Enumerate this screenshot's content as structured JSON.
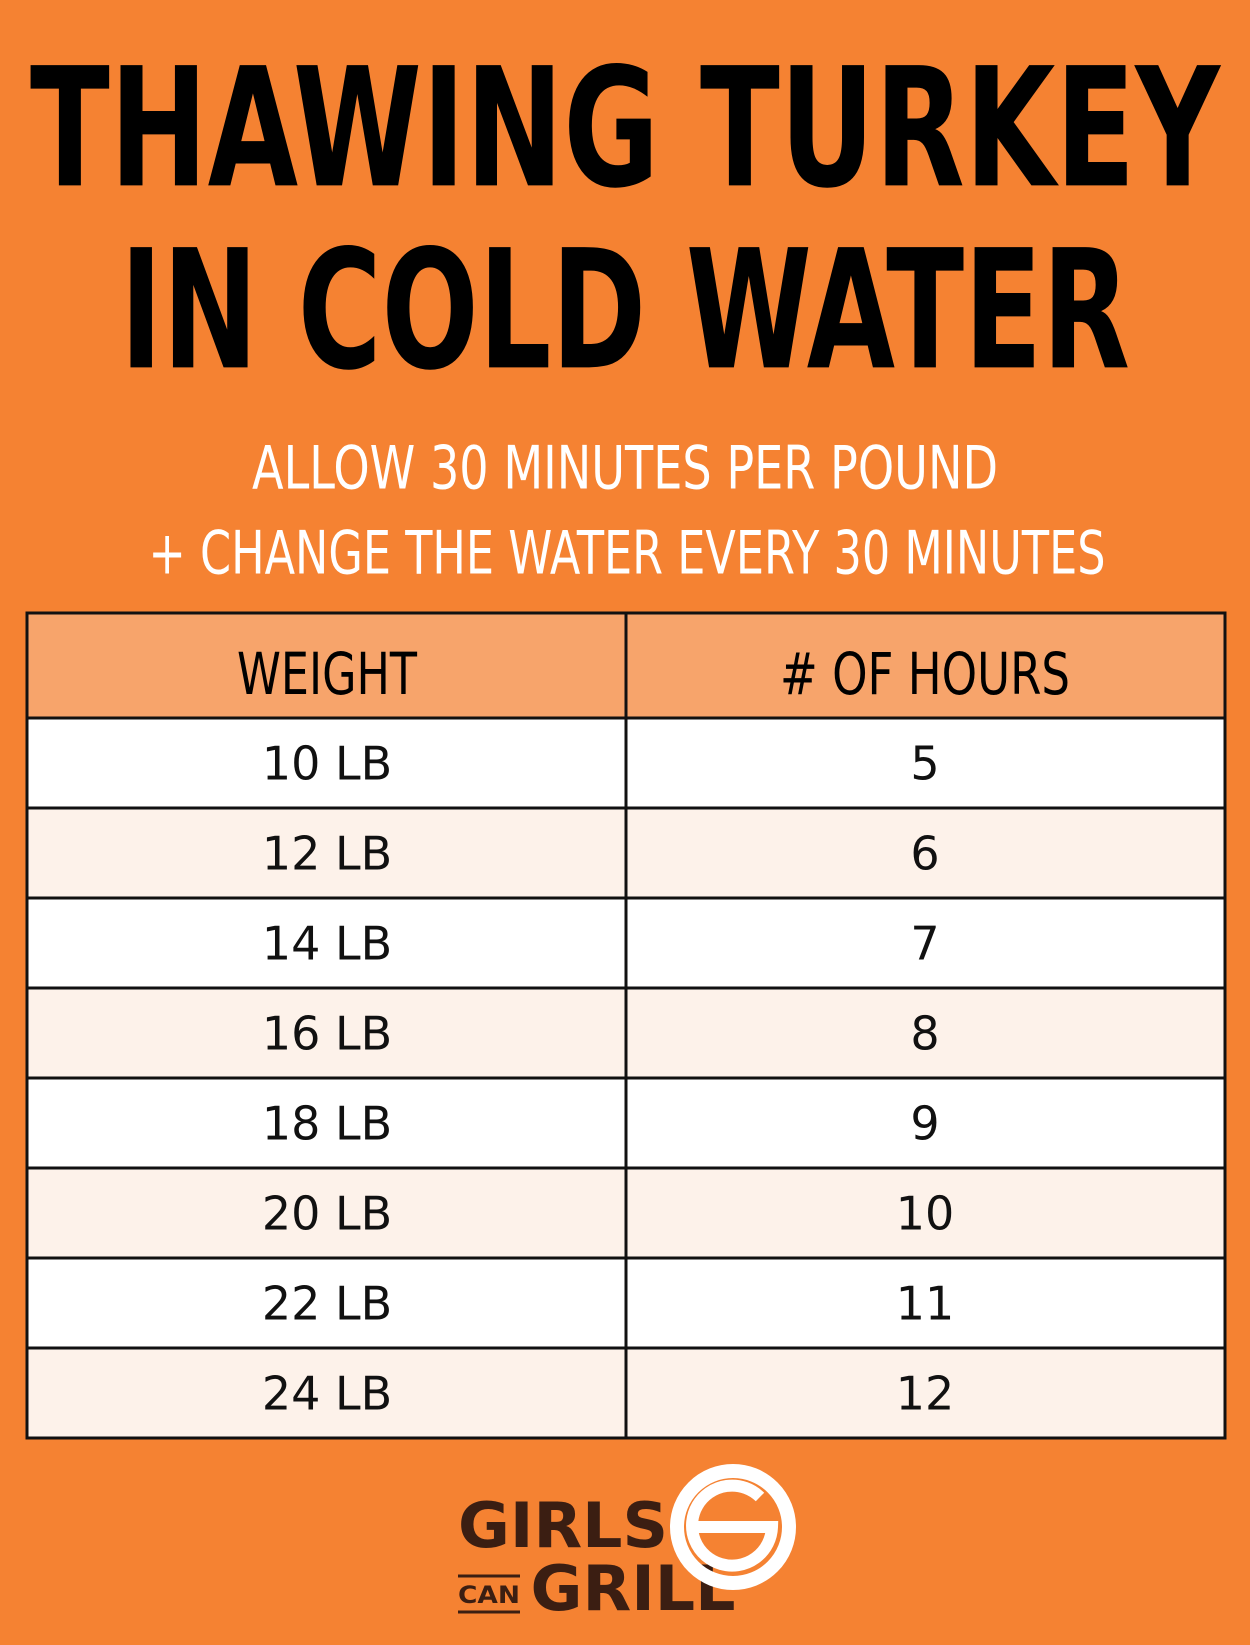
{
  "header": {
    "title_lines": [
      "THAWING TURKEY",
      "IN COLD WATER"
    ],
    "subtitle_lines": [
      "ALLOW 30 MINUTES PER POUND",
      "+ CHANGE THE WATER EVERY 30 MINUTES"
    ]
  },
  "table": {
    "columns": [
      "WEIGHT",
      "# OF HOURS"
    ],
    "rows": [
      [
        "10 LB",
        5
      ],
      [
        "12 LB",
        6
      ],
      [
        "14 LB",
        7
      ],
      [
        "16 LB",
        8
      ],
      [
        "18 LB",
        9
      ],
      [
        "20 LB",
        10
      ],
      [
        "22 LB",
        11
      ],
      [
        "24 LB",
        12
      ]
    ]
  },
  "logo": {
    "line1": "GIRLS",
    "small": "CAN",
    "line2": "GRILL"
  }
}
